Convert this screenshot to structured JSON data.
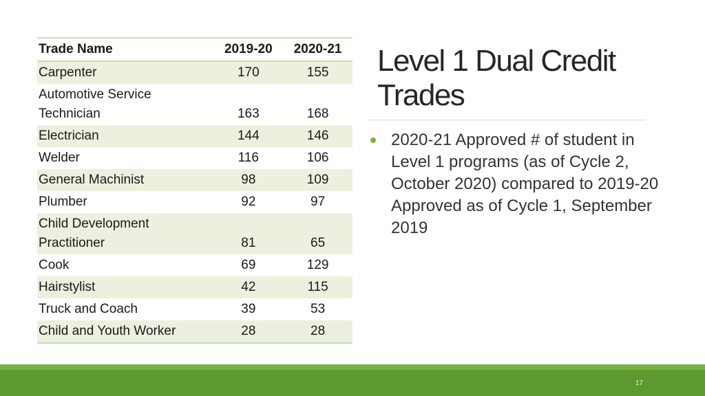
{
  "table": {
    "headers": [
      "Trade Name",
      "2019-20",
      "2020-21"
    ],
    "rows": [
      {
        "name": "Carpenter",
        "y2019": "170",
        "y2020": "155"
      },
      {
        "name": "Automotive Service Technician",
        "y2019": "163",
        "y2020": "168"
      },
      {
        "name": "Electrician",
        "y2019": "144",
        "y2020": "146"
      },
      {
        "name": "Welder",
        "y2019": "116",
        "y2020": "106"
      },
      {
        "name": "General Machinist",
        "y2019": "98",
        "y2020": "109"
      },
      {
        "name": "Plumber",
        "y2019": "92",
        "y2020": "97"
      },
      {
        "name": "Child Development Practitioner",
        "y2019": "81",
        "y2020": "65"
      },
      {
        "name": "Cook",
        "y2019": "69",
        "y2020": "129"
      },
      {
        "name": "Hairstylist",
        "y2019": "42",
        "y2020": "115"
      },
      {
        "name": "Truck and Coach",
        "y2019": "39",
        "y2020": "53"
      },
      {
        "name": "Child and Youth Worker",
        "y2019": "28",
        "y2020": "28"
      }
    ]
  },
  "title": "Level 1 Dual Credit Trades",
  "bullet": "2020-21 Approved # of student in Level 1 programs (as of Cycle 2, October 2020) compared to 2019-20 Approved as of Cycle 1, September 2019",
  "slide_number": "17",
  "colors": {
    "accent": "#7bb23f",
    "footer": "#5c9a2f",
    "row_shade": "#ebf1de",
    "table_rule": "#c5e0b4"
  }
}
